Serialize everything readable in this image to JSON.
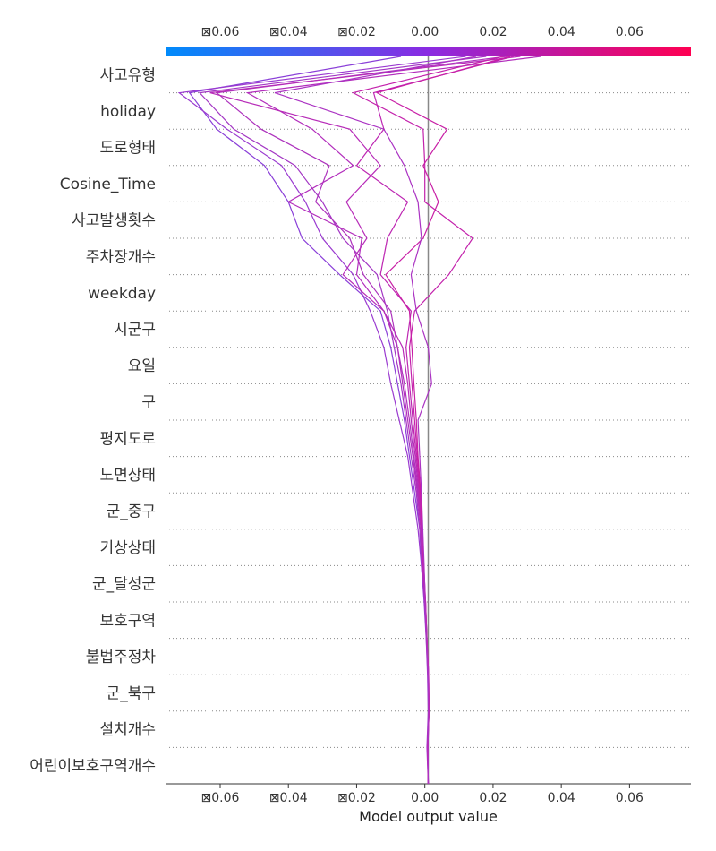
{
  "chart_data": {
    "type": "line",
    "subtype": "shap-decision-plot",
    "xlabel": "Model output value",
    "xlim": [
      -0.076,
      0.078
    ],
    "base_value": 0.001,
    "x_ticks": [
      -0.06,
      -0.04,
      -0.02,
      0.0,
      0.02,
      0.04,
      0.06
    ],
    "x_tick_labels": [
      "⊠0.06",
      "⊠0.04",
      "⊠0.02",
      "0.00",
      "0.02",
      "0.04",
      "0.06"
    ],
    "colorbar": {
      "low_color": "#008bfb",
      "mid_color": "#8a2be2",
      "high_color": "#ff0052"
    },
    "gridlines": "dotted-horizontal",
    "features": [
      "사고유형",
      "holiday",
      "도로형태",
      "Cosine_Time",
      "사고발생횟수",
      "주차장개수",
      "weekday",
      "시군구",
      "요일",
      "구",
      "평지도로",
      "노면상태",
      "군_중구",
      "기상상태",
      "군_달성군",
      "보호구역",
      "불법주정차",
      "군_북구",
      "설치개수",
      "어린이보호구역개수"
    ],
    "series": [
      {
        "values": [
          0.001,
          0.0008,
          0.0012,
          0.001,
          0.0005,
          0.0,
          -0.001,
          -0.0015,
          -0.003,
          -0.0045,
          -0.006,
          -0.008,
          -0.01,
          -0.013,
          -0.025,
          -0.036,
          -0.04,
          -0.047,
          -0.061,
          -0.069,
          -0.007
        ],
        "color": "#8a3fd8"
      },
      {
        "values": [
          0.001,
          0.0006,
          0.001,
          0.0008,
          0.0004,
          -0.0002,
          -0.001,
          -0.002,
          -0.0035,
          -0.005,
          -0.0075,
          -0.01,
          -0.012,
          -0.016,
          -0.021,
          -0.03,
          -0.035,
          -0.042,
          -0.058,
          -0.072,
          0.012
        ],
        "color": "#9a3ad0"
      },
      {
        "values": [
          0.001,
          0.0009,
          0.0011,
          0.0009,
          0.0004,
          0.0,
          -0.0008,
          -0.0015,
          -0.0025,
          -0.004,
          -0.0055,
          -0.007,
          -0.009,
          -0.011,
          -0.014,
          -0.024,
          -0.03,
          -0.038,
          -0.056,
          -0.066,
          0.018
        ],
        "color": "#a336c4"
      },
      {
        "values": [
          0.001,
          0.0007,
          0.0013,
          0.0011,
          0.0006,
          0.0001,
          -0.0006,
          -0.001,
          -0.002,
          -0.0032,
          -0.0045,
          -0.006,
          -0.008,
          -0.01,
          -0.018,
          -0.022,
          -0.032,
          -0.028,
          -0.048,
          -0.061,
          0.024
        ],
        "color": "#ad32bd"
      },
      {
        "values": [
          0.001,
          0.0008,
          0.0012,
          0.001,
          0.0005,
          0.0001,
          -0.0007,
          -0.0012,
          -0.0022,
          -0.0035,
          -0.005,
          -0.0065,
          -0.008,
          -0.012,
          -0.02,
          -0.0185,
          -0.04,
          -0.021,
          -0.033,
          -0.052,
          0.034
        ],
        "color": "#b22dbc"
      },
      {
        "values": [
          0.001,
          0.0009,
          0.0012,
          0.0011,
          0.0006,
          0.0002,
          -0.0005,
          -0.001,
          -0.0018,
          -0.0028,
          -0.004,
          -0.005,
          -0.0065,
          -0.012,
          -0.024,
          -0.017,
          -0.023,
          -0.013,
          -0.022,
          -0.063,
          0.028
        ],
        "color": "#b72bb8"
      },
      {
        "values": [
          0.001,
          0.0008,
          0.0011,
          0.001,
          0.0005,
          0.0001,
          -0.0004,
          -0.0009,
          -0.0016,
          -0.0025,
          -0.0035,
          -0.0045,
          -0.0055,
          -0.004,
          -0.013,
          -0.011,
          -0.005,
          -0.02,
          -0.012,
          -0.015,
          0.026
        ],
        "color": "#bd26b2"
      },
      {
        "values": [
          0.001,
          0.0009,
          0.0012,
          0.001,
          0.0006,
          0.0002,
          -0.0003,
          -0.0008,
          -0.0014,
          -0.0022,
          -0.003,
          -0.0038,
          -0.0045,
          -0.003,
          0.007,
          0.014,
          0.0,
          0.0,
          -0.0005,
          -0.021,
          0.023
        ],
        "color": "#c322ac"
      },
      {
        "values": [
          0.001,
          0.0008,
          0.0012,
          0.0011,
          0.0006,
          0.0002,
          -0.0003,
          -0.0007,
          -0.0012,
          -0.002,
          -0.0025,
          -0.0032,
          -0.0038,
          -0.0045,
          -0.0115,
          -0.0005,
          0.004,
          -0.0005,
          0.0065,
          -0.014,
          0.025
        ],
        "color": "#c81fa6"
      },
      {
        "values": [
          0.001,
          0.0009,
          0.0011,
          0.001,
          0.0005,
          0.0001,
          -0.0002,
          -0.0006,
          -0.001,
          -0.0015,
          -0.002,
          0.002,
          0.001,
          -0.0025,
          -0.004,
          -0.001,
          -0.002,
          -0.006,
          -0.012,
          -0.044,
          0.015
        ],
        "color": "#ab33c3"
      }
    ]
  }
}
